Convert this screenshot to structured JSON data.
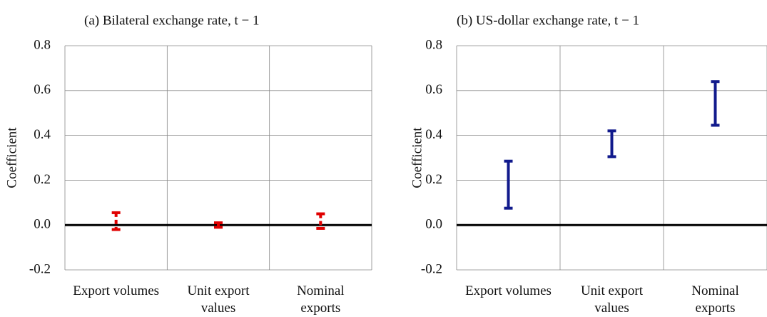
{
  "chart_data": [
    {
      "type": "range",
      "title": "(a) Bilateral exchange rate, t − 1",
      "y_label": "Coefficient",
      "categories": [
        "Export volumes",
        "Unit export values",
        "Nominal exports"
      ],
      "low": [
        -0.02,
        -0.01,
        -0.015
      ],
      "high": [
        0.055,
        0.01,
        0.05
      ],
      "color": "#e00000",
      "line_style": "dashed",
      "ylim": [
        -0.2,
        0.8
      ],
      "yticks": [
        -0.2,
        {
          "value": 0,
          "label": "0.0"
        },
        0.2,
        0.4,
        0.6,
        0.8
      ],
      "grid": true
    },
    {
      "type": "range",
      "title": "(b) US-dollar exchange rate, t − 1",
      "y_label": "Coefficient",
      "categories": [
        "Export volumes",
        "Unit export values",
        "Nominal exports"
      ],
      "low": [
        0.075,
        0.305,
        0.445
      ],
      "high": [
        0.285,
        0.42,
        0.64
      ],
      "color": "#111a8c",
      "line_style": "solid",
      "ylim": [
        -0.2,
        0.8
      ],
      "yticks": [
        -0.2,
        {
          "value": 0,
          "label": "0.0"
        },
        0.2,
        0.4,
        0.6,
        0.8
      ],
      "grid": true
    }
  ]
}
